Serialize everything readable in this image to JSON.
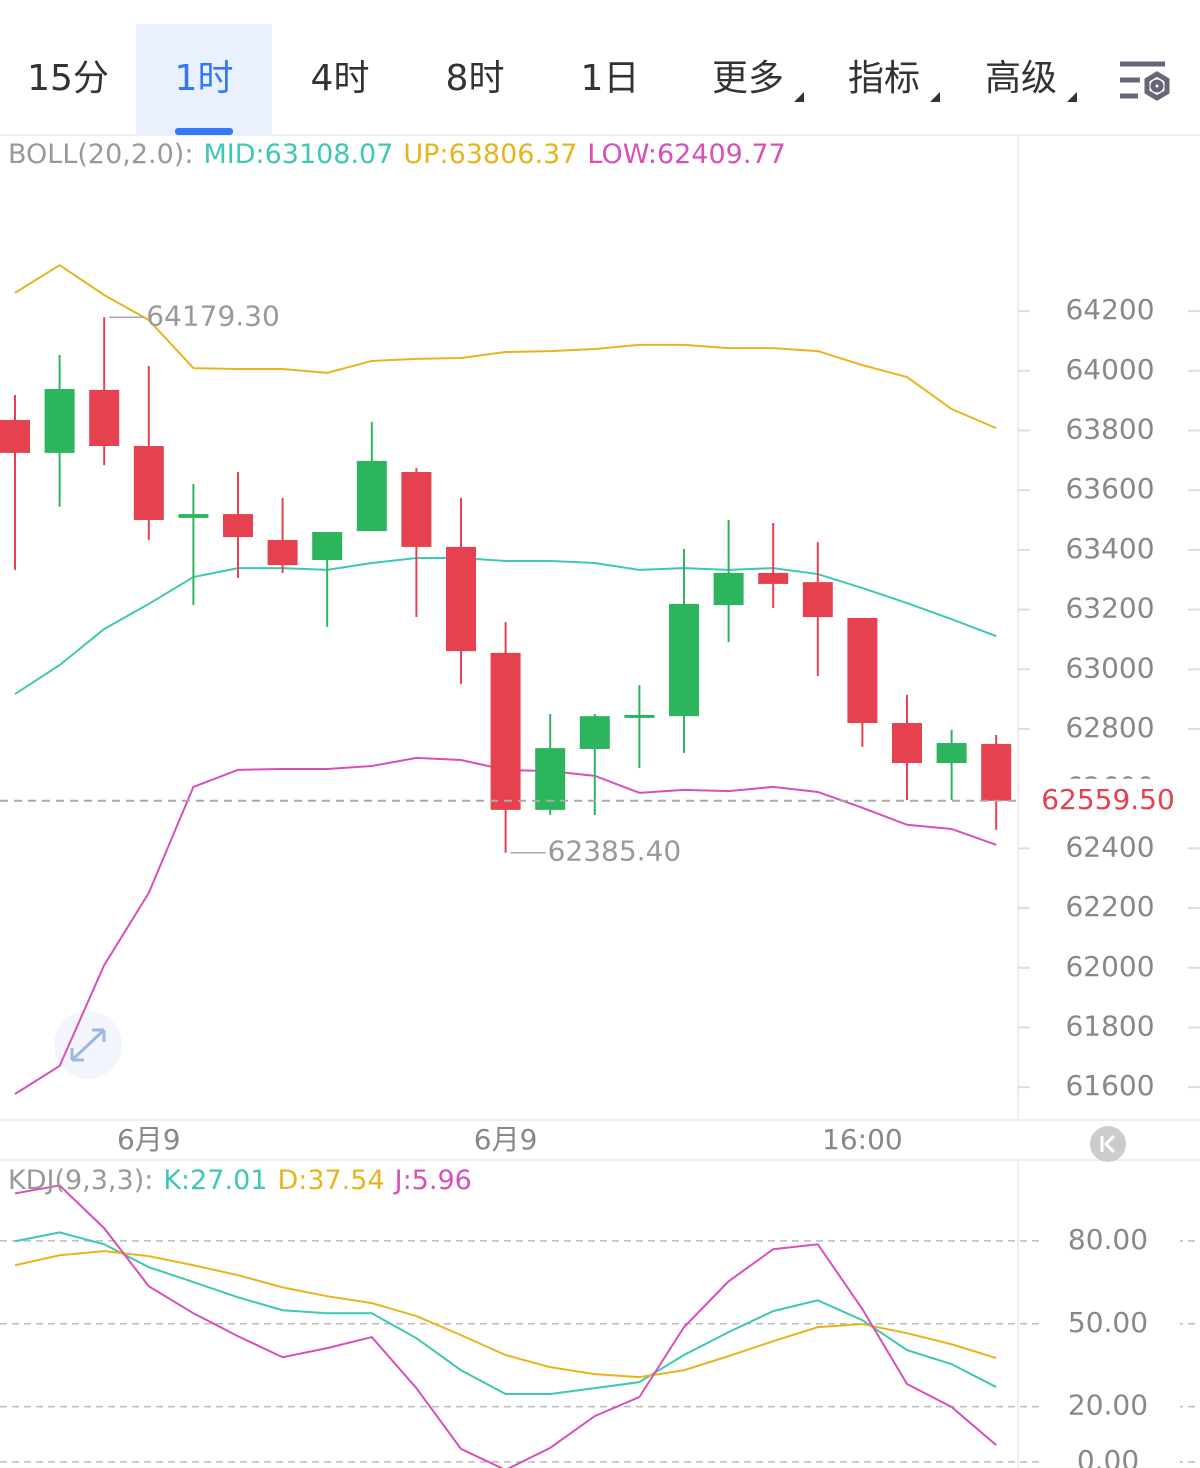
{
  "tabs": [
    "15分",
    "1时",
    "4时",
    "8时",
    "1日",
    "更多",
    "指标",
    "高级"
  ],
  "selected_tab": 1,
  "chart_data": [
    {
      "type": "candlestick",
      "legend": {
        "title": "BOLL(20,2.0):"
      },
      "categories": [
        null,
        null,
        null,
        "6月9",
        null,
        null,
        null,
        null,
        null,
        null,
        null,
        "6月9",
        null,
        null,
        null,
        null,
        null,
        null,
        null,
        "16:00",
        null,
        null,
        null
      ],
      "open": [
        63835,
        63725,
        63936,
        63748,
        63507,
        63520,
        63433,
        63366,
        63463,
        63661,
        63410,
        63055,
        62529,
        62733,
        62840,
        62843,
        63215,
        63323,
        63292,
        63172,
        62820,
        62686,
        62750
      ],
      "high": [
        63919,
        64053,
        64179.3,
        64016,
        63621,
        63661,
        63574,
        63460,
        63829,
        63674,
        63574,
        63158,
        62850,
        62850,
        62947,
        63403,
        63500,
        63490,
        63426,
        63172,
        62914,
        62797,
        62780
      ],
      "low": [
        63333,
        63544,
        63684,
        63433,
        63215,
        63306,
        63323,
        63142,
        63463,
        63175,
        62951,
        62385.4,
        62512,
        62512,
        62669,
        62720,
        63091,
        63205,
        62977,
        62740,
        62562,
        62562,
        62462
      ],
      "close": [
        63725,
        63939,
        63748,
        63500,
        63520,
        63443,
        63349,
        63460,
        63698,
        63410,
        63061,
        62529,
        62736,
        62843,
        62847,
        63219,
        63323,
        63286,
        63175,
        62820,
        62686,
        62753,
        62559.5
      ],
      "up_color": "#2db55d",
      "down_color": "#e5414e",
      "max_label": "64179.30",
      "min_label": "62385.40",
      "last_price_label": "62559.50",
      "series": [
        {
          "name": "MID:63108.07",
          "color": "#3cc8b4",
          "values": [
            62917,
            63014,
            63135,
            63219,
            63309,
            63339,
            63339,
            63333,
            63356,
            63373,
            63373,
            63363,
            63363,
            63356,
            63333,
            63339,
            63333,
            63339,
            63319,
            63272,
            63222,
            63168,
            63111
          ]
        },
        {
          "name": "UP:63806.37",
          "color": "#e8b41e",
          "values": [
            64261,
            64354,
            64254,
            64170,
            64009,
            64006,
            64006,
            63993,
            64033,
            64040,
            64043,
            64063,
            64066,
            64073,
            64087,
            64087,
            64076,
            64076,
            64066,
            64019,
            63979,
            63872,
            63808
          ]
        },
        {
          "name": "LOW:62409.77",
          "color": "#d94fb8",
          "values": [
            61577,
            61671,
            62009,
            62251,
            62606,
            62663,
            62666,
            62666,
            62676,
            62703,
            62696,
            62663,
            62659,
            62643,
            62586,
            62596,
            62592,
            62606,
            62589,
            62536,
            62479,
            62465,
            62412
          ]
        }
      ],
      "ylim": [
        61490,
        64790
      ],
      "yticks": [
        61600,
        61800,
        62000,
        62200,
        62400,
        62600,
        62800,
        63000,
        63200,
        63400,
        63600,
        63800,
        64000,
        64200
      ]
    },
    {
      "type": "line",
      "legend": {
        "title": "KDJ(9,3,3):"
      },
      "series": [
        {
          "name": "K:27.01",
          "color": "#3cc8b4",
          "values": [
            79.9,
            83.1,
            78.8,
            70.5,
            65.1,
            59.6,
            54.9,
            53.8,
            53.8,
            44.8,
            33.2,
            24.6,
            24.6,
            26.7,
            28.9,
            38.7,
            47.0,
            54.6,
            58.5,
            51.3,
            40.5,
            35.4,
            27.1
          ]
        },
        {
          "name": "D:37.54",
          "color": "#e8b41e",
          "values": [
            71.2,
            74.8,
            76.3,
            74.5,
            71.2,
            67.6,
            63.2,
            60.0,
            57.5,
            52.8,
            45.9,
            38.7,
            34.3,
            31.8,
            30.7,
            33.2,
            38.3,
            43.7,
            48.8,
            49.9,
            46.6,
            42.6,
            37.6
          ]
        },
        {
          "name": "J:5.96",
          "color": "#d94fb8",
          "values": [
            97.2,
            100.1,
            84.6,
            63.6,
            53.8,
            45.5,
            37.9,
            41.2,
            45.2,
            26.7,
            4.7,
            -2.9,
            5.1,
            16.6,
            23.5,
            48.8,
            65.4,
            77.0,
            78.8,
            55.3,
            28.2,
            19.9,
            6.1
          ]
        }
      ],
      "ylim": [
        -2.2,
        109.3
      ],
      "yticks": [
        {
          "value": 0,
          "label": "0.00"
        },
        {
          "value": 20,
          "label": "20.00"
        },
        {
          "value": 50,
          "label": "50.00"
        },
        {
          "value": 80,
          "label": "80.00"
        }
      ],
      "grid": true
    }
  ]
}
